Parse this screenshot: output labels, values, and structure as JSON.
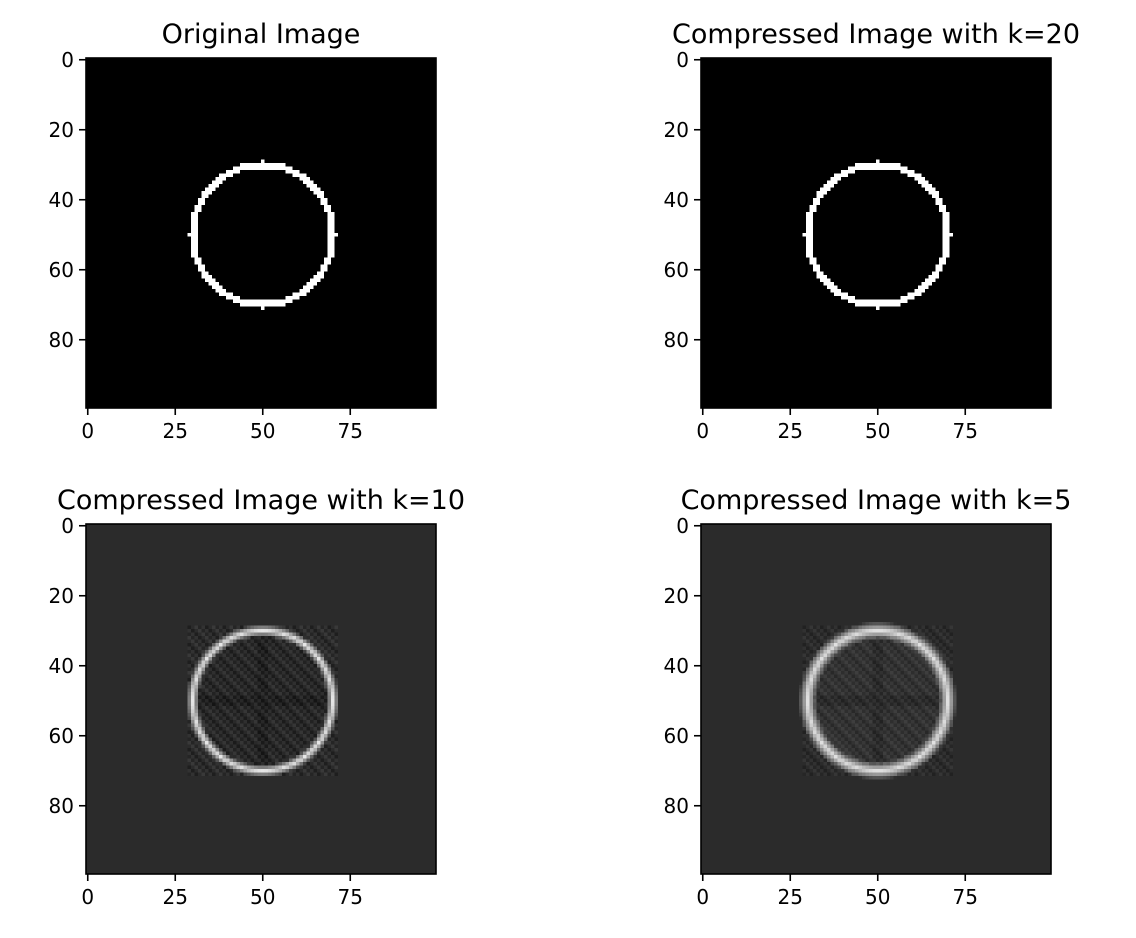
{
  "chart_data": [
    {
      "type": "heatmap",
      "title": "Original Image",
      "image_size": [
        100,
        100
      ],
      "colormap": "gray",
      "background_level": 0.0,
      "ring": {
        "center": [
          50,
          50
        ],
        "radius": 20,
        "level": 1.0,
        "blur": 0,
        "artifact_box": [
          29,
          71
        ],
        "artifact_level": 0.0,
        "inner_level": 0.0
      },
      "xticks": [
        0,
        25,
        50,
        75
      ],
      "yticks": [
        0,
        20,
        40,
        60,
        80
      ],
      "xlim": [
        -0.5,
        99.5
      ],
      "ylim": [
        99.5,
        -0.5
      ]
    },
    {
      "type": "heatmap",
      "title": "Compressed Image with k=20",
      "image_size": [
        100,
        100
      ],
      "colormap": "gray",
      "background_level": 0.0,
      "ring": {
        "center": [
          50,
          50
        ],
        "radius": 20,
        "level": 1.0,
        "blur": 0,
        "artifact_box": [
          29,
          71
        ],
        "artifact_level": 0.0,
        "inner_level": 0.0
      },
      "xticks": [
        0,
        25,
        50,
        75
      ],
      "yticks": [
        0,
        20,
        40,
        60,
        80
      ],
      "xlim": [
        -0.5,
        99.5
      ],
      "ylim": [
        99.5,
        -0.5
      ]
    },
    {
      "type": "heatmap",
      "title": "Compressed Image with k=10",
      "image_size": [
        100,
        100
      ],
      "colormap": "gray",
      "background_level": 0.17,
      "ring": {
        "center": [
          50,
          50
        ],
        "radius": 20,
        "level": 0.9,
        "blur": 0.8,
        "artifact_box": [
          29,
          71
        ],
        "artifact_level": 0.15,
        "inner_level": 0.16
      },
      "xticks": [
        0,
        25,
        50,
        75
      ],
      "yticks": [
        0,
        20,
        40,
        60,
        80
      ],
      "xlim": [
        -0.5,
        99.5
      ],
      "ylim": [
        99.5,
        -0.5
      ]
    },
    {
      "type": "heatmap",
      "title": "Compressed Image with k=5",
      "image_size": [
        100,
        100
      ],
      "colormap": "gray",
      "background_level": 0.17,
      "ring": {
        "center": [
          50,
          50
        ],
        "radius": 20,
        "level": 0.88,
        "blur": 1.6,
        "artifact_box": [
          29,
          71
        ],
        "artifact_level": 0.12,
        "inner_level": 0.2
      },
      "xticks": [
        0,
        25,
        50,
        75
      ],
      "yticks": [
        0,
        20,
        40,
        60,
        80
      ],
      "xlim": [
        -0.5,
        99.5
      ],
      "ylim": [
        99.5,
        -0.5
      ]
    }
  ]
}
